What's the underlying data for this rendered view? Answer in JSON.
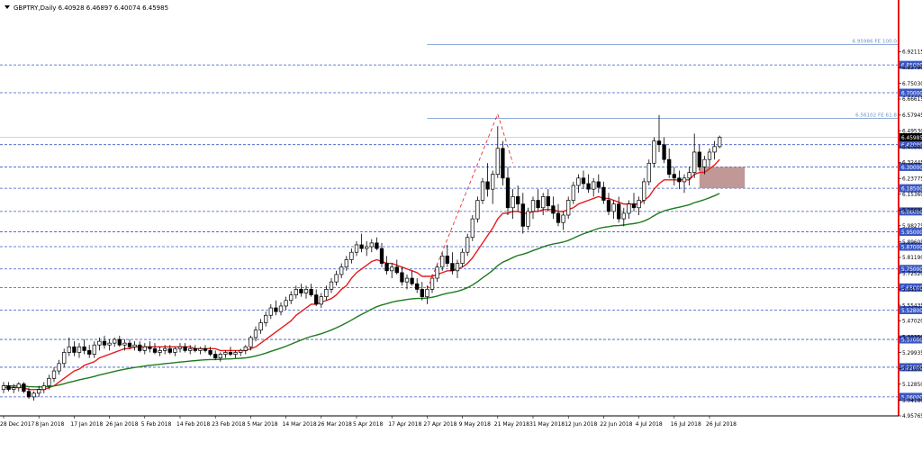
{
  "chart_data": {
    "type": "candlestick",
    "title": "GBPTRY,Daily  6.40928 6.46897 6.40074 6.45985",
    "ylim": [
      4.95765,
      6.98
    ],
    "price_ticks": [
      "6.92115",
      "6.83790",
      "6.75030",
      "6.66615",
      "6.57945",
      "6.49530",
      "6.40860",
      "6.32445",
      "6.23775",
      "6.15360",
      "6.06690",
      "5.98275",
      "5.89605",
      "5.81190",
      "5.72520",
      "5.64105",
      "5.55435",
      "5.47020",
      "5.38350",
      "5.29935",
      "5.21265",
      "5.12850",
      "5.04180",
      "4.95765"
    ],
    "date_labels": [
      {
        "label": "28 Dec 2017",
        "i": 0
      },
      {
        "label": "8 Jan 2018",
        "i": 7
      },
      {
        "label": "17 Jan 2018",
        "i": 14
      },
      {
        "label": "26 Jan 2018",
        "i": 21
      },
      {
        "label": "5 Feb 2018",
        "i": 28
      },
      {
        "label": "14 Feb 2018",
        "i": 35
      },
      {
        "label": "23 Feb 2018",
        "i": 42
      },
      {
        "label": "5 Mar 2018",
        "i": 49
      },
      {
        "label": "14 Mar 2018",
        "i": 56
      },
      {
        "label": "26 Mar 2018",
        "i": 63
      },
      {
        "label": "5 Apr 2018",
        "i": 70
      },
      {
        "label": "17 Apr 2018",
        "i": 77
      },
      {
        "label": "27 Apr 2018",
        "i": 84
      },
      {
        "label": "9 May 2018",
        "i": 91
      },
      {
        "label": "21 May 2018",
        "i": 98
      },
      {
        "label": "31 May 2018",
        "i": 105
      },
      {
        "label": "12 Jun 2018",
        "i": 112
      },
      {
        "label": "22 Jun 2018",
        "i": 119
      },
      {
        "label": "4 Jul 2018",
        "i": 126
      },
      {
        "label": "16 Jul 2018",
        "i": 133
      },
      {
        "label": "26 Jul 2018",
        "i": 140
      }
    ],
    "levels": [
      {
        "label": "6.85000",
        "value": 6.85
      },
      {
        "label": "6.70000",
        "value": 6.7
      },
      {
        "label": "6.42000",
        "value": 6.42
      },
      {
        "label": "6.30000",
        "value": 6.3
      },
      {
        "label": "6.18500",
        "value": 6.185
      },
      {
        "label": "6.06000",
        "value": 6.06
      },
      {
        "label": "5.95000",
        "value": 5.95
      },
      {
        "label": "5.87000",
        "value": 5.87
      },
      {
        "label": "5.75000",
        "value": 5.75
      },
      {
        "label": "5.65000",
        "value": 5.65
      },
      {
        "label": "5.52800",
        "value": 5.528
      },
      {
        "label": "5.37000",
        "value": 5.37
      },
      {
        "label": "5.22000",
        "value": 5.22
      },
      {
        "label": "5.06000",
        "value": 5.06
      }
    ],
    "fibo": [
      {
        "label": "6.95986 FE 100.0",
        "value": 6.95986,
        "from_i": 84
      },
      {
        "label": "6.56102 FE 61.8",
        "value": 6.56102,
        "from_i": 84
      }
    ],
    "current_price": {
      "label": "6.45985",
      "value": 6.45985
    },
    "zone": {
      "from_i": 138,
      "to_i": 147,
      "top": 6.3,
      "bottom": 6.185
    },
    "dashed_projection": [
      {
        "i": 84,
        "v": 5.64
      },
      {
        "i": 98,
        "v": 6.585
      },
      {
        "i": 101,
        "v": 6.32
      }
    ],
    "ohlc": [
      [
        5.1,
        5.14,
        5.08,
        5.12
      ],
      [
        5.12,
        5.14,
        5.09,
        5.1
      ],
      [
        5.1,
        5.13,
        5.08,
        5.11
      ],
      [
        5.11,
        5.14,
        5.09,
        5.13
      ],
      [
        5.13,
        5.14,
        5.08,
        5.09
      ],
      [
        5.09,
        5.11,
        5.05,
        5.06
      ],
      [
        5.06,
        5.09,
        5.04,
        5.08
      ],
      [
        5.08,
        5.12,
        5.06,
        5.1
      ],
      [
        5.1,
        5.14,
        5.08,
        5.12
      ],
      [
        5.12,
        5.18,
        5.1,
        5.16
      ],
      [
        5.16,
        5.22,
        5.14,
        5.2
      ],
      [
        5.2,
        5.26,
        5.18,
        5.24
      ],
      [
        5.24,
        5.32,
        5.22,
        5.3
      ],
      [
        5.3,
        5.38,
        5.28,
        5.33
      ],
      [
        5.33,
        5.36,
        5.28,
        5.3
      ],
      [
        5.3,
        5.35,
        5.27,
        5.33
      ],
      [
        5.33,
        5.37,
        5.29,
        5.31
      ],
      [
        5.31,
        5.34,
        5.27,
        5.29
      ],
      [
        5.29,
        5.36,
        5.27,
        5.34
      ],
      [
        5.34,
        5.38,
        5.31,
        5.36
      ],
      [
        5.36,
        5.39,
        5.32,
        5.34
      ],
      [
        5.34,
        5.37,
        5.31,
        5.35
      ],
      [
        5.35,
        5.38,
        5.33,
        5.37
      ],
      [
        5.37,
        5.39,
        5.33,
        5.34
      ],
      [
        5.34,
        5.37,
        5.31,
        5.35
      ],
      [
        5.35,
        5.37,
        5.32,
        5.33
      ],
      [
        5.33,
        5.36,
        5.31,
        5.34
      ],
      [
        5.34,
        5.36,
        5.3,
        5.31
      ],
      [
        5.31,
        5.35,
        5.29,
        5.33
      ],
      [
        5.33,
        5.36,
        5.3,
        5.32
      ],
      [
        5.32,
        5.35,
        5.29,
        5.3
      ],
      [
        5.3,
        5.33,
        5.28,
        5.31
      ],
      [
        5.31,
        5.34,
        5.29,
        5.32
      ],
      [
        5.32,
        5.34,
        5.29,
        5.3
      ],
      [
        5.3,
        5.33,
        5.28,
        5.32
      ],
      [
        5.32,
        5.35,
        5.3,
        5.33
      ],
      [
        5.33,
        5.35,
        5.3,
        5.31
      ],
      [
        5.31,
        5.34,
        5.29,
        5.32
      ],
      [
        5.32,
        5.34,
        5.3,
        5.31
      ],
      [
        5.31,
        5.33,
        5.29,
        5.32
      ],
      [
        5.32,
        5.34,
        5.3,
        5.31
      ],
      [
        5.31,
        5.33,
        5.28,
        5.29
      ],
      [
        5.29,
        5.31,
        5.26,
        5.27
      ],
      [
        5.27,
        5.3,
        5.25,
        5.29
      ],
      [
        5.29,
        5.31,
        5.27,
        5.3
      ],
      [
        5.3,
        5.33,
        5.28,
        5.29
      ],
      [
        5.29,
        5.31,
        5.27,
        5.3
      ],
      [
        5.3,
        5.32,
        5.28,
        5.31
      ],
      [
        5.31,
        5.34,
        5.29,
        5.33
      ],
      [
        5.33,
        5.39,
        5.31,
        5.38
      ],
      [
        5.38,
        5.44,
        5.36,
        5.42
      ],
      [
        5.42,
        5.48,
        5.4,
        5.46
      ],
      [
        5.46,
        5.52,
        5.44,
        5.5
      ],
      [
        5.5,
        5.56,
        5.48,
        5.54
      ],
      [
        5.54,
        5.58,
        5.5,
        5.52
      ],
      [
        5.52,
        5.57,
        5.5,
        5.55
      ],
      [
        5.55,
        5.6,
        5.53,
        5.58
      ],
      [
        5.58,
        5.63,
        5.56,
        5.61
      ],
      [
        5.61,
        5.66,
        5.59,
        5.64
      ],
      [
        5.64,
        5.67,
        5.6,
        5.62
      ],
      [
        5.62,
        5.66,
        5.59,
        5.64
      ],
      [
        5.64,
        5.67,
        5.6,
        5.61
      ],
      [
        5.61,
        5.64,
        5.55,
        5.56
      ],
      [
        5.56,
        5.62,
        5.54,
        5.6
      ],
      [
        5.6,
        5.66,
        5.58,
        5.64
      ],
      [
        5.64,
        5.7,
        5.62,
        5.68
      ],
      [
        5.68,
        5.74,
        5.66,
        5.72
      ],
      [
        5.72,
        5.78,
        5.7,
        5.76
      ],
      [
        5.76,
        5.82,
        5.74,
        5.8
      ],
      [
        5.8,
        5.86,
        5.78,
        5.84
      ],
      [
        5.84,
        5.9,
        5.82,
        5.88
      ],
      [
        5.88,
        5.94,
        5.84,
        5.86
      ],
      [
        5.86,
        5.9,
        5.82,
        5.87
      ],
      [
        5.87,
        5.91,
        5.84,
        5.89
      ],
      [
        5.89,
        5.92,
        5.85,
        5.86
      ],
      [
        5.86,
        5.89,
        5.76,
        5.78
      ],
      [
        5.78,
        5.82,
        5.72,
        5.74
      ],
      [
        5.74,
        5.78,
        5.7,
        5.76
      ],
      [
        5.76,
        5.8,
        5.72,
        5.73
      ],
      [
        5.73,
        5.76,
        5.66,
        5.68
      ],
      [
        5.68,
        5.72,
        5.64,
        5.7
      ],
      [
        5.7,
        5.74,
        5.66,
        5.67
      ],
      [
        5.67,
        5.7,
        5.62,
        5.64
      ],
      [
        5.64,
        5.68,
        5.58,
        5.6
      ],
      [
        5.6,
        5.66,
        5.56,
        5.64
      ],
      [
        5.64,
        5.72,
        5.62,
        5.7
      ],
      [
        5.7,
        5.78,
        5.68,
        5.76
      ],
      [
        5.76,
        5.84,
        5.74,
        5.82
      ],
      [
        5.82,
        5.88,
        5.76,
        5.78
      ],
      [
        5.78,
        5.84,
        5.72,
        5.74
      ],
      [
        5.74,
        5.8,
        5.7,
        5.78
      ],
      [
        5.78,
        5.86,
        5.76,
        5.84
      ],
      [
        5.84,
        5.94,
        5.82,
        5.92
      ],
      [
        5.92,
        6.04,
        5.9,
        6.02
      ],
      [
        6.02,
        6.14,
        6.0,
        6.12
      ],
      [
        6.12,
        6.24,
        6.1,
        6.22
      ],
      [
        6.22,
        6.32,
        6.14,
        6.18
      ],
      [
        6.18,
        6.28,
        6.1,
        6.26
      ],
      [
        6.26,
        6.52,
        6.24,
        6.4
      ],
      [
        6.4,
        6.44,
        6.2,
        6.24
      ],
      [
        6.24,
        6.3,
        6.04,
        6.08
      ],
      [
        6.08,
        6.18,
        6.02,
        6.14
      ],
      [
        6.14,
        6.2,
        6.06,
        6.1
      ],
      [
        6.1,
        6.16,
        5.94,
        5.98
      ],
      [
        5.98,
        6.08,
        5.96,
        6.06
      ],
      [
        6.06,
        6.14,
        6.02,
        6.12
      ],
      [
        6.12,
        6.18,
        6.06,
        6.08
      ],
      [
        6.08,
        6.16,
        6.04,
        6.14
      ],
      [
        6.14,
        6.18,
        6.06,
        6.09
      ],
      [
        6.09,
        6.14,
        6.02,
        6.05
      ],
      [
        6.05,
        6.1,
        5.98,
        6.0
      ],
      [
        6.0,
        6.06,
        5.96,
        6.04
      ],
      [
        6.04,
        6.14,
        6.02,
        6.12
      ],
      [
        6.12,
        6.22,
        6.1,
        6.2
      ],
      [
        6.2,
        6.26,
        6.16,
        6.24
      ],
      [
        6.24,
        6.28,
        6.18,
        6.21
      ],
      [
        6.21,
        6.26,
        6.16,
        6.18
      ],
      [
        6.18,
        6.24,
        6.14,
        6.22
      ],
      [
        6.22,
        6.26,
        6.16,
        6.19
      ],
      [
        6.19,
        6.22,
        6.1,
        6.12
      ],
      [
        6.12,
        6.16,
        6.04,
        6.06
      ],
      [
        6.06,
        6.12,
        6.02,
        6.1
      ],
      [
        6.1,
        6.14,
        6.0,
        6.02
      ],
      [
        6.02,
        6.08,
        5.98,
        6.05
      ],
      [
        6.05,
        6.12,
        6.02,
        6.1
      ],
      [
        6.1,
        6.16,
        6.06,
        6.08
      ],
      [
        6.08,
        6.14,
        6.04,
        6.12
      ],
      [
        6.12,
        6.24,
        6.1,
        6.22
      ],
      [
        6.22,
        6.34,
        6.2,
        6.32
      ],
      [
        6.32,
        6.46,
        6.3,
        6.44
      ],
      [
        6.44,
        6.58,
        6.38,
        6.42
      ],
      [
        6.42,
        6.46,
        6.32,
        6.34
      ],
      [
        6.34,
        6.4,
        6.24,
        6.26
      ],
      [
        6.26,
        6.3,
        6.2,
        6.24
      ],
      [
        6.24,
        6.28,
        6.18,
        6.22
      ],
      [
        6.22,
        6.26,
        6.16,
        6.24
      ],
      [
        6.24,
        6.3,
        6.2,
        6.27
      ],
      [
        6.27,
        6.48,
        6.24,
        6.38
      ],
      [
        6.38,
        6.42,
        6.28,
        6.3
      ],
      [
        6.3,
        6.36,
        6.26,
        6.34
      ],
      [
        6.34,
        6.4,
        6.3,
        6.38
      ],
      [
        6.38,
        6.44,
        6.34,
        6.41
      ],
      [
        6.40928,
        6.46897,
        6.40074,
        6.45985
      ]
    ],
    "ema_red": [
      5.11,
      5.11,
      5.11,
      5.11,
      5.11,
      5.1,
      5.1,
      5.1,
      5.1,
      5.11,
      5.12,
      5.14,
      5.16,
      5.18,
      5.2,
      5.21,
      5.23,
      5.24,
      5.25,
      5.27,
      5.28,
      5.29,
      5.3,
      5.31,
      5.32,
      5.32,
      5.33,
      5.33,
      5.33,
      5.33,
      5.33,
      5.33,
      5.33,
      5.33,
      5.33,
      5.33,
      5.33,
      5.33,
      5.32,
      5.32,
      5.32,
      5.32,
      5.32,
      5.31,
      5.31,
      5.31,
      5.31,
      5.31,
      5.31,
      5.32,
      5.33,
      5.35,
      5.37,
      5.39,
      5.41,
      5.43,
      5.45,
      5.47,
      5.5,
      5.52,
      5.54,
      5.56,
      5.56,
      5.57,
      5.58,
      5.59,
      5.61,
      5.64,
      5.66,
      5.7,
      5.73,
      5.75,
      5.77,
      5.79,
      5.8,
      5.79,
      5.78,
      5.78,
      5.77,
      5.76,
      5.75,
      5.74,
      5.73,
      5.71,
      5.71,
      5.71,
      5.72,
      5.73,
      5.74,
      5.74,
      5.75,
      5.76,
      5.78,
      5.81,
      5.85,
      5.89,
      5.93,
      5.97,
      6.02,
      6.05,
      6.05,
      6.06,
      6.06,
      6.05,
      6.05,
      6.06,
      6.06,
      6.07,
      6.07,
      6.07,
      6.06,
      6.06,
      6.07,
      6.08,
      6.1,
      6.11,
      6.12,
      6.13,
      6.14,
      6.13,
      6.13,
      6.12,
      6.11,
      6.1,
      6.1,
      6.1,
      6.1,
      6.12,
      6.14,
      6.18,
      6.21,
      6.23,
      6.23,
      6.23,
      6.23,
      6.23,
      6.23,
      6.26,
      6.27,
      6.27,
      6.29,
      6.31,
      6.34
    ]
  }
}
